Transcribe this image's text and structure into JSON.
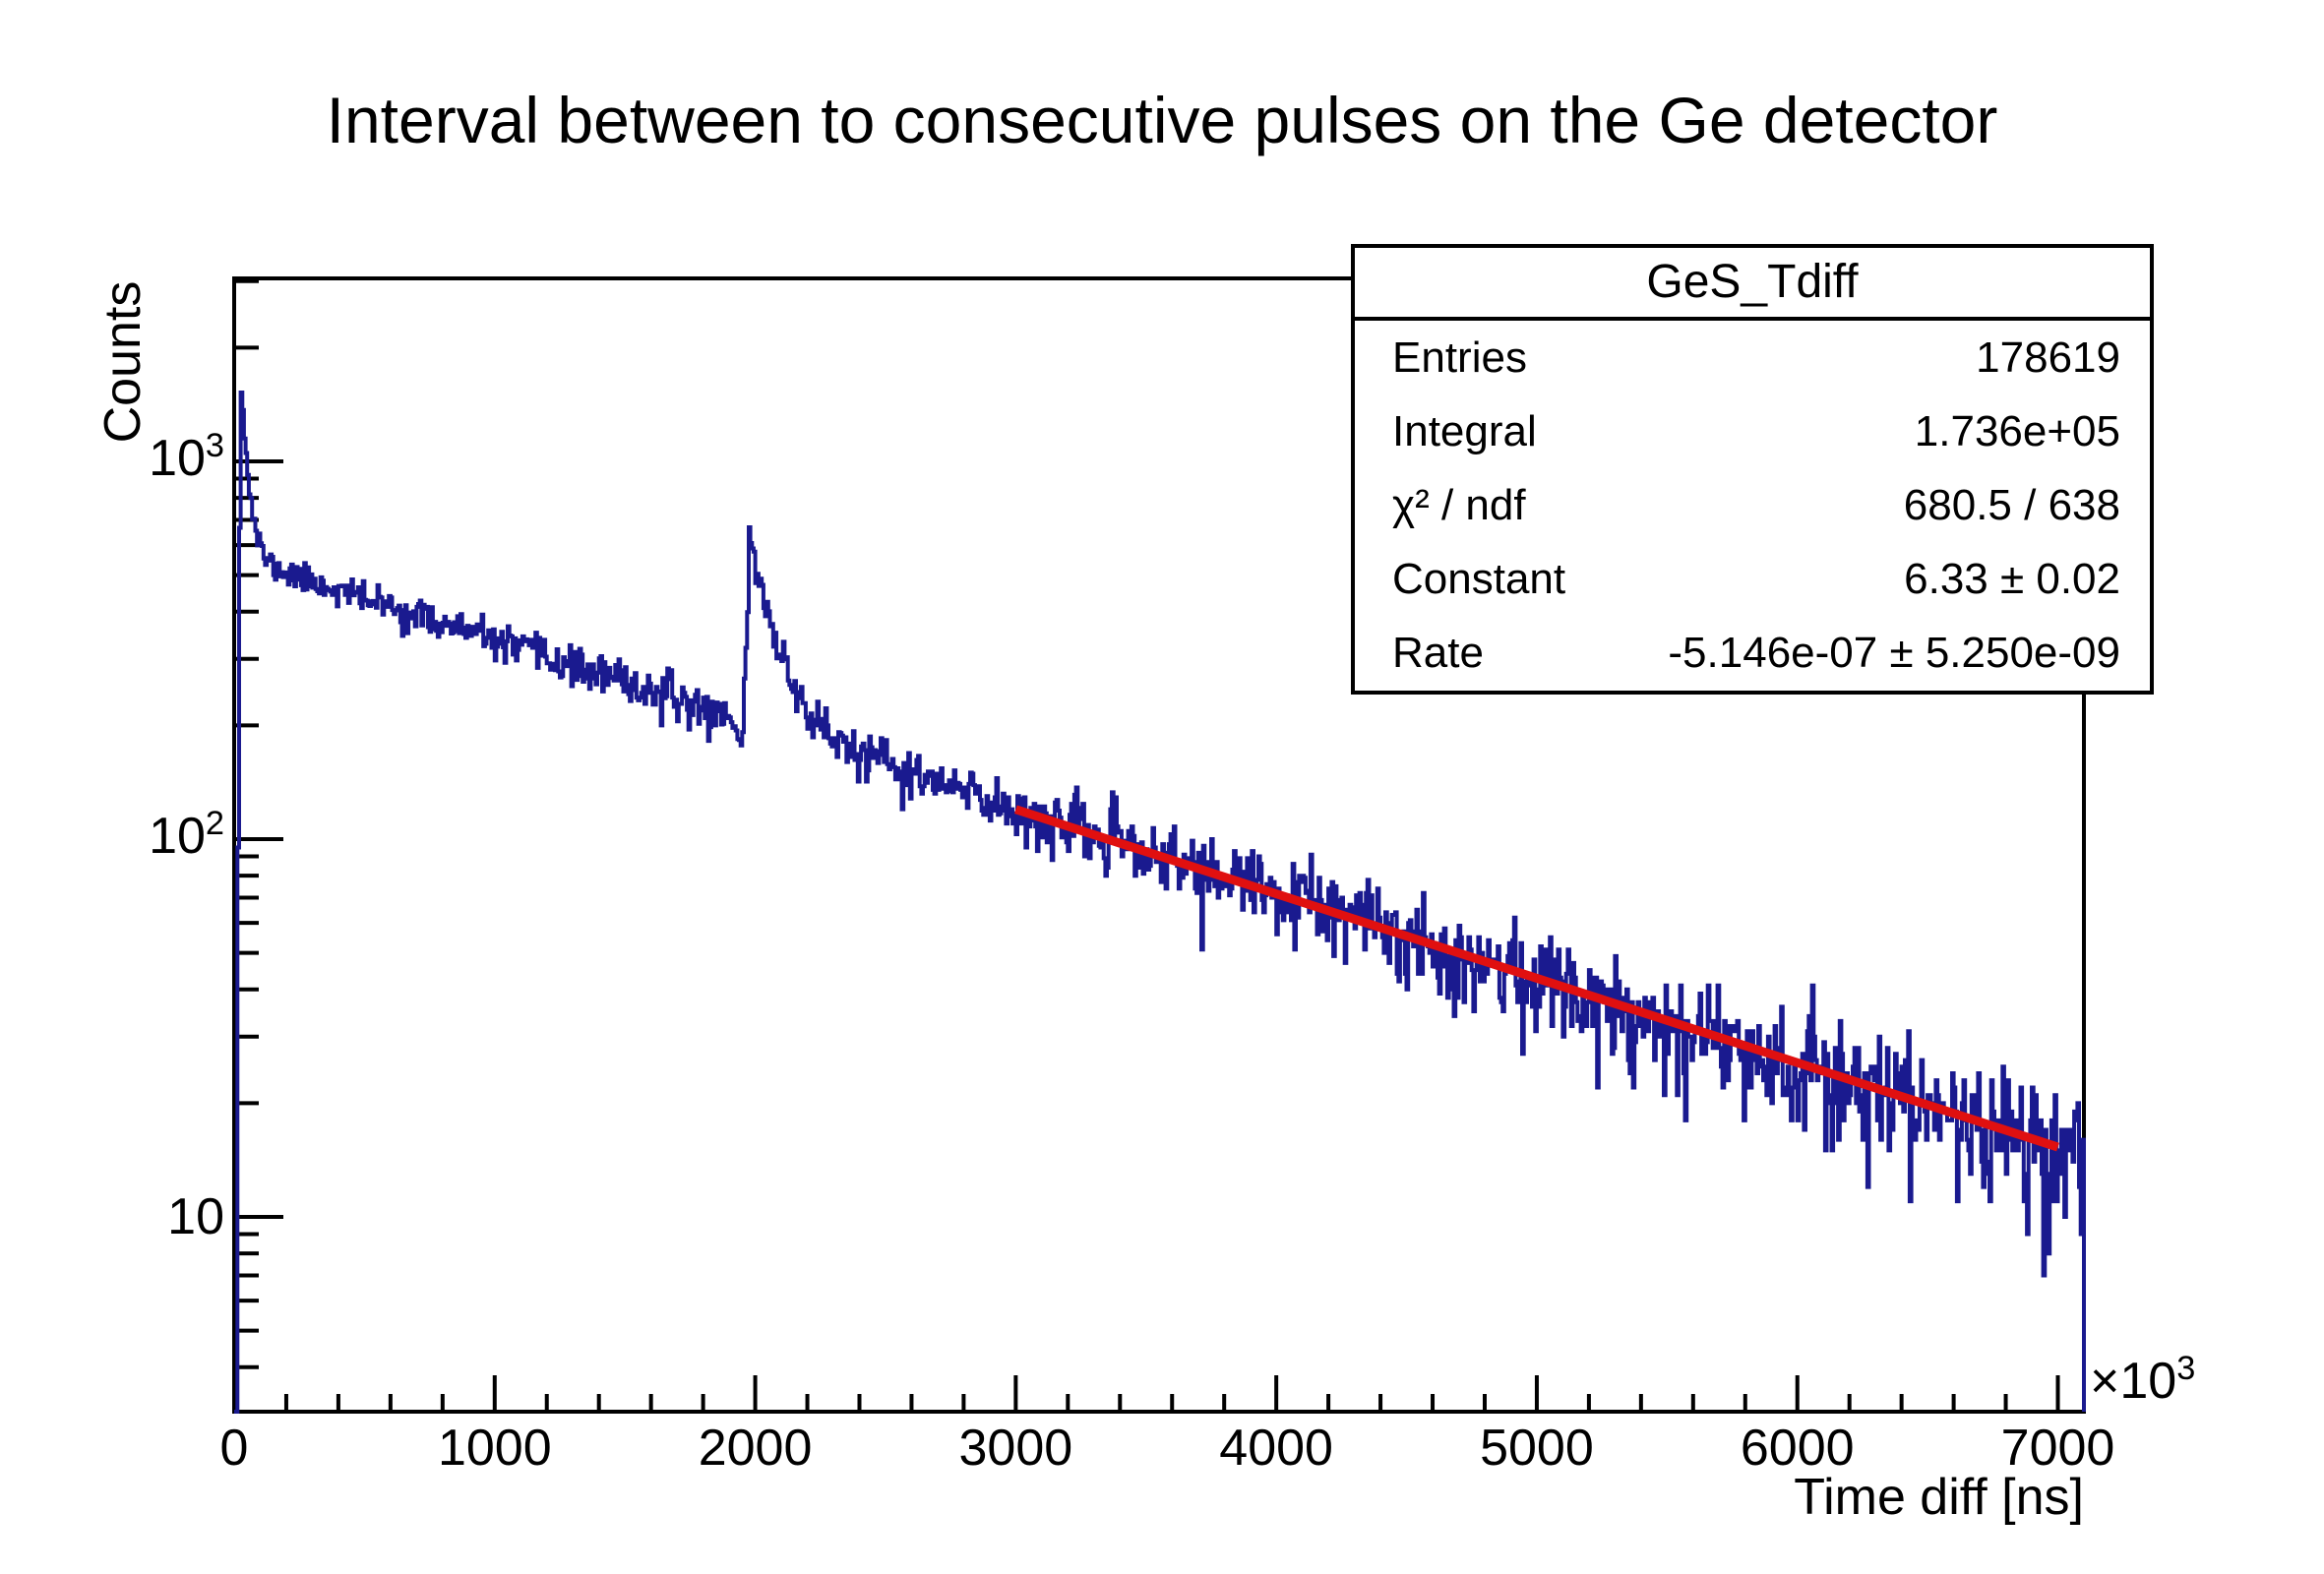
{
  "title": {
    "text": "Interval between to consecutive pulses on the Ge detector"
  },
  "colors": {
    "histogram": "#1a1a8f",
    "fit": "#e01010",
    "axis": "#000000",
    "background": "#ffffff"
  },
  "chart_data": {
    "type": "histogram",
    "title": "Interval between to consecutive pulses on the Ge detector",
    "xlabel": "Time diff [ns]",
    "ylabel": "Counts",
    "grid": false,
    "x_axis": {
      "scale": "linear",
      "min": 0,
      "max": 7100,
      "unit": "ns",
      "multiplier": {
        "base": "×10",
        "exp": "3"
      },
      "major_ticks": [
        0,
        1000,
        2000,
        3000,
        4000,
        5000,
        6000,
        7000
      ],
      "major_tick_labels": [
        "0",
        "1000",
        "2000",
        "3000",
        "4000",
        "5000",
        "6000",
        "7000"
      ],
      "minor_tick_step": 200
    },
    "y_axis": {
      "scale": "log",
      "min": 3.05,
      "max": 3050,
      "major_ticks": [
        10,
        100,
        1000
      ],
      "major_tick_labels": [
        {
          "base": "10",
          "exp": ""
        },
        {
          "base": "10",
          "exp": "2"
        },
        {
          "base": "10",
          "exp": "3"
        }
      ]
    },
    "series": {
      "name": "GeS_Tdiff",
      "color": "#1a1a8f",
      "bins": 1136,
      "bin_width_x1e3ns": 6.25,
      "model": {
        "seed": 11,
        "constant": 6.33,
        "rate_per_x1e3ns": -0.0005146,
        "dead_center": 17.5,
        "dead_width": 1.2,
        "spike_x": 27,
        "spike_amp": 1050,
        "spike_rise": 3,
        "spike_tau": 26,
        "dip_x": 1945,
        "dip_sigma": 8,
        "dip_depth": 0.22,
        "peak_x": 1978,
        "peak_amp": 430,
        "peak_rise": 9,
        "peak_tau": 93
      },
      "anchor_points_x1e3ns_counts": [
        [
          0,
          0
        ],
        [
          12,
          0
        ],
        [
          18,
          120
        ],
        [
          22,
          700
        ],
        [
          27,
          1600
        ],
        [
          33,
          1300
        ],
        [
          40,
          980
        ],
        [
          50,
          840
        ],
        [
          60,
          700
        ],
        [
          75,
          610
        ],
        [
          90,
          560
        ],
        [
          110,
          530
        ],
        [
          150,
          500
        ],
        [
          200,
          480
        ],
        [
          300,
          466
        ],
        [
          400,
          440
        ],
        [
          500,
          428
        ],
        [
          600,
          405
        ],
        [
          700,
          390
        ],
        [
          800,
          370
        ],
        [
          900,
          350
        ],
        [
          1000,
          335
        ],
        [
          1100,
          318
        ],
        [
          1200,
          302
        ],
        [
          1300,
          287
        ],
        [
          1400,
          272
        ],
        [
          1500,
          259
        ],
        [
          1600,
          246
        ],
        [
          1700,
          233
        ],
        [
          1800,
          222
        ],
        [
          1900,
          210
        ],
        [
          1944,
          160
        ],
        [
          1978,
          590
        ],
        [
          2000,
          540
        ],
        [
          2050,
          400
        ],
        [
          2100,
          300
        ],
        [
          2150,
          255
        ],
        [
          2200,
          228
        ],
        [
          2300,
          196
        ],
        [
          2400,
          185
        ],
        [
          2500,
          170
        ],
        [
          2750,
          148
        ],
        [
          3000,
          122
        ],
        [
          3250,
          107
        ],
        [
          3500,
          93
        ],
        [
          3750,
          82
        ],
        [
          4000,
          71
        ],
        [
          4250,
          62
        ],
        [
          4500,
          55
        ],
        [
          4750,
          48
        ],
        [
          5000,
          42
        ],
        [
          5250,
          37
        ],
        [
          5500,
          32
        ],
        [
          5750,
          28
        ],
        [
          6000,
          25
        ],
        [
          6250,
          22
        ],
        [
          6500,
          19
        ],
        [
          6750,
          17
        ],
        [
          7000,
          15
        ],
        [
          7097,
          14
        ]
      ]
    },
    "fit": {
      "name": "exponential",
      "color": "#e01010",
      "constant": 6.33,
      "rate_per_ns": -5.146e-07,
      "x_start_x1e3ns": 3000,
      "x_end_x1e3ns": 7000
    }
  },
  "stats_box": {
    "title": "GeS_Tdiff",
    "rows": [
      {
        "label": "Entries",
        "value": "178619"
      },
      {
        "label": "Integral",
        "value": "1.736e+05"
      },
      {
        "label": "χ² / ndf",
        "value": "680.5 / 638"
      },
      {
        "label": "Constant",
        "value": "6.33 ± 0.02"
      },
      {
        "label": "Rate",
        "value": "-5.146e-07 ± 5.250e-09"
      }
    ]
  }
}
